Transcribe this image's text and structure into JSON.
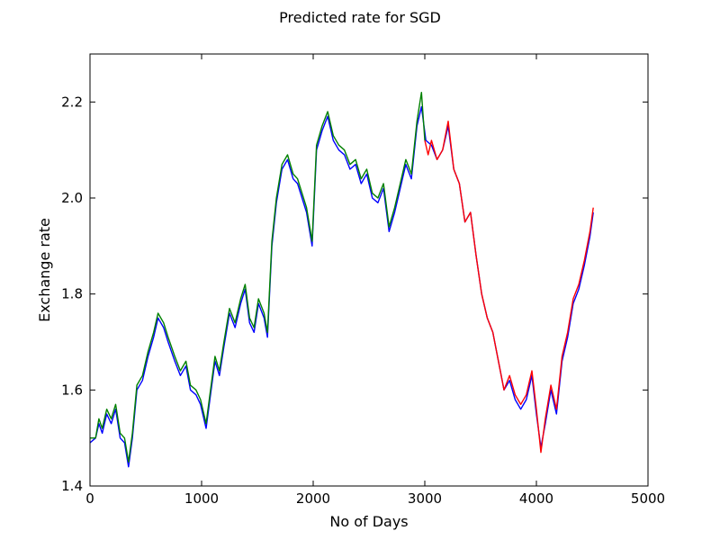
{
  "chart_data": {
    "type": "line",
    "title": "Predicted rate for SGD",
    "xlabel": "No of Days",
    "ylabel": "Exchange rate",
    "xlim": [
      0,
      5000
    ],
    "ylim": [
      1.4,
      2.3
    ],
    "x_ticks": [
      0,
      1000,
      2000,
      3000,
      4000,
      5000
    ],
    "x_tick_labels": [
      "0",
      "1000",
      "2000",
      "3000",
      "4000",
      "5000"
    ],
    "y_ticks": [
      1.4,
      1.6,
      1.8,
      2.0,
      2.2
    ],
    "y_tick_labels": [
      "1.4",
      "1.6",
      "1.8",
      "2.0",
      "2.2"
    ],
    "grid": false,
    "series": [
      {
        "color": "#0000ff",
        "points": [
          [
            0,
            1.49
          ],
          [
            50,
            1.5
          ],
          [
            80,
            1.53
          ],
          [
            110,
            1.51
          ],
          [
            150,
            1.55
          ],
          [
            190,
            1.53
          ],
          [
            230,
            1.56
          ],
          [
            270,
            1.5
          ],
          [
            310,
            1.49
          ],
          [
            345,
            1.44
          ],
          [
            380,
            1.5
          ],
          [
            420,
            1.6
          ],
          [
            470,
            1.62
          ],
          [
            520,
            1.67
          ],
          [
            570,
            1.71
          ],
          [
            610,
            1.75
          ],
          [
            660,
            1.73
          ],
          [
            700,
            1.7
          ],
          [
            760,
            1.66
          ],
          [
            810,
            1.63
          ],
          [
            860,
            1.65
          ],
          [
            900,
            1.6
          ],
          [
            950,
            1.59
          ],
          [
            990,
            1.57
          ],
          [
            1040,
            1.52
          ],
          [
            1080,
            1.59
          ],
          [
            1120,
            1.66
          ],
          [
            1160,
            1.63
          ],
          [
            1200,
            1.69
          ],
          [
            1250,
            1.76
          ],
          [
            1300,
            1.73
          ],
          [
            1350,
            1.78
          ],
          [
            1390,
            1.81
          ],
          [
            1430,
            1.74
          ],
          [
            1470,
            1.72
          ],
          [
            1510,
            1.78
          ],
          [
            1560,
            1.75
          ],
          [
            1590,
            1.71
          ],
          [
            1630,
            1.9
          ],
          [
            1670,
            1.99
          ],
          [
            1720,
            2.06
          ],
          [
            1770,
            2.08
          ],
          [
            1820,
            2.04
          ],
          [
            1860,
            2.03
          ],
          [
            1900,
            2.0
          ],
          [
            1940,
            1.97
          ],
          [
            1990,
            1.9
          ],
          [
            2030,
            2.1
          ],
          [
            2080,
            2.14
          ],
          [
            2130,
            2.17
          ],
          [
            2180,
            2.12
          ],
          [
            2230,
            2.1
          ],
          [
            2280,
            2.09
          ],
          [
            2330,
            2.06
          ],
          [
            2380,
            2.07
          ],
          [
            2430,
            2.03
          ],
          [
            2480,
            2.05
          ],
          [
            2530,
            2.0
          ],
          [
            2580,
            1.99
          ],
          [
            2630,
            2.02
          ],
          [
            2680,
            1.93
          ],
          [
            2730,
            1.97
          ],
          [
            2780,
            2.02
          ],
          [
            2830,
            2.07
          ],
          [
            2880,
            2.04
          ],
          [
            2930,
            2.15
          ],
          [
            2970,
            2.19
          ],
          [
            3010,
            2.12
          ],
          [
            3060,
            2.11
          ],
          [
            3110,
            2.08
          ],
          [
            3160,
            2.1
          ],
          [
            3210,
            2.15
          ],
          [
            3260,
            2.06
          ],
          [
            3310,
            2.03
          ],
          [
            3360,
            1.95
          ],
          [
            3410,
            1.97
          ],
          [
            3460,
            1.88
          ],
          [
            3510,
            1.8
          ],
          [
            3560,
            1.75
          ],
          [
            3610,
            1.72
          ],
          [
            3660,
            1.66
          ],
          [
            3710,
            1.6
          ],
          [
            3760,
            1.62
          ],
          [
            3810,
            1.58
          ],
          [
            3860,
            1.56
          ],
          [
            3910,
            1.58
          ],
          [
            3960,
            1.63
          ],
          [
            4000,
            1.55
          ],
          [
            4040,
            1.48
          ],
          [
            4080,
            1.53
          ],
          [
            4130,
            1.6
          ],
          [
            4180,
            1.55
          ],
          [
            4230,
            1.66
          ],
          [
            4280,
            1.71
          ],
          [
            4330,
            1.78
          ],
          [
            4380,
            1.81
          ],
          [
            4430,
            1.86
          ],
          [
            4480,
            1.92
          ],
          [
            4510,
            1.97
          ]
        ]
      },
      {
        "color": "#008000",
        "points": [
          [
            0,
            1.5
          ],
          [
            50,
            1.5
          ],
          [
            80,
            1.54
          ],
          [
            110,
            1.52
          ],
          [
            150,
            1.56
          ],
          [
            190,
            1.54
          ],
          [
            230,
            1.57
          ],
          [
            270,
            1.51
          ],
          [
            310,
            1.5
          ],
          [
            345,
            1.45
          ],
          [
            380,
            1.51
          ],
          [
            420,
            1.61
          ],
          [
            470,
            1.63
          ],
          [
            520,
            1.68
          ],
          [
            570,
            1.72
          ],
          [
            610,
            1.76
          ],
          [
            660,
            1.74
          ],
          [
            700,
            1.71
          ],
          [
            760,
            1.67
          ],
          [
            810,
            1.64
          ],
          [
            860,
            1.66
          ],
          [
            900,
            1.61
          ],
          [
            950,
            1.6
          ],
          [
            990,
            1.58
          ],
          [
            1040,
            1.53
          ],
          [
            1080,
            1.6
          ],
          [
            1120,
            1.67
          ],
          [
            1160,
            1.64
          ],
          [
            1200,
            1.7
          ],
          [
            1250,
            1.77
          ],
          [
            1300,
            1.74
          ],
          [
            1350,
            1.79
          ],
          [
            1390,
            1.82
          ],
          [
            1430,
            1.75
          ],
          [
            1470,
            1.73
          ],
          [
            1510,
            1.79
          ],
          [
            1560,
            1.76
          ],
          [
            1590,
            1.72
          ],
          [
            1630,
            1.91
          ],
          [
            1670,
            2.0
          ],
          [
            1720,
            2.07
          ],
          [
            1770,
            2.09
          ],
          [
            1820,
            2.05
          ],
          [
            1860,
            2.04
          ],
          [
            1900,
            2.01
          ],
          [
            1940,
            1.98
          ],
          [
            1990,
            1.91
          ],
          [
            2030,
            2.11
          ],
          [
            2080,
            2.15
          ],
          [
            2130,
            2.18
          ],
          [
            2180,
            2.13
          ],
          [
            2230,
            2.11
          ],
          [
            2280,
            2.1
          ],
          [
            2330,
            2.07
          ],
          [
            2380,
            2.08
          ],
          [
            2430,
            2.04
          ],
          [
            2480,
            2.06
          ],
          [
            2530,
            2.01
          ],
          [
            2580,
            2.0
          ],
          [
            2630,
            2.03
          ],
          [
            2680,
            1.94
          ],
          [
            2730,
            1.98
          ],
          [
            2780,
            2.03
          ],
          [
            2830,
            2.08
          ],
          [
            2880,
            2.05
          ],
          [
            2930,
            2.16
          ],
          [
            2970,
            2.22
          ],
          [
            3000,
            2.12
          ]
        ]
      },
      {
        "color": "#ff0000",
        "points": [
          [
            3000,
            2.12
          ],
          [
            3030,
            2.09
          ],
          [
            3060,
            2.12
          ],
          [
            3110,
            2.08
          ],
          [
            3160,
            2.1
          ],
          [
            3210,
            2.16
          ],
          [
            3260,
            2.06
          ],
          [
            3310,
            2.03
          ],
          [
            3360,
            1.95
          ],
          [
            3410,
            1.97
          ],
          [
            3460,
            1.88
          ],
          [
            3510,
            1.8
          ],
          [
            3560,
            1.75
          ],
          [
            3610,
            1.72
          ],
          [
            3660,
            1.66
          ],
          [
            3710,
            1.6
          ],
          [
            3760,
            1.63
          ],
          [
            3810,
            1.59
          ],
          [
            3860,
            1.57
          ],
          [
            3910,
            1.59
          ],
          [
            3960,
            1.64
          ],
          [
            4000,
            1.56
          ],
          [
            4040,
            1.47
          ],
          [
            4080,
            1.54
          ],
          [
            4130,
            1.61
          ],
          [
            4180,
            1.56
          ],
          [
            4230,
            1.67
          ],
          [
            4280,
            1.72
          ],
          [
            4330,
            1.79
          ],
          [
            4380,
            1.82
          ],
          [
            4430,
            1.87
          ],
          [
            4480,
            1.93
          ],
          [
            4510,
            1.98
          ]
        ]
      }
    ]
  }
}
